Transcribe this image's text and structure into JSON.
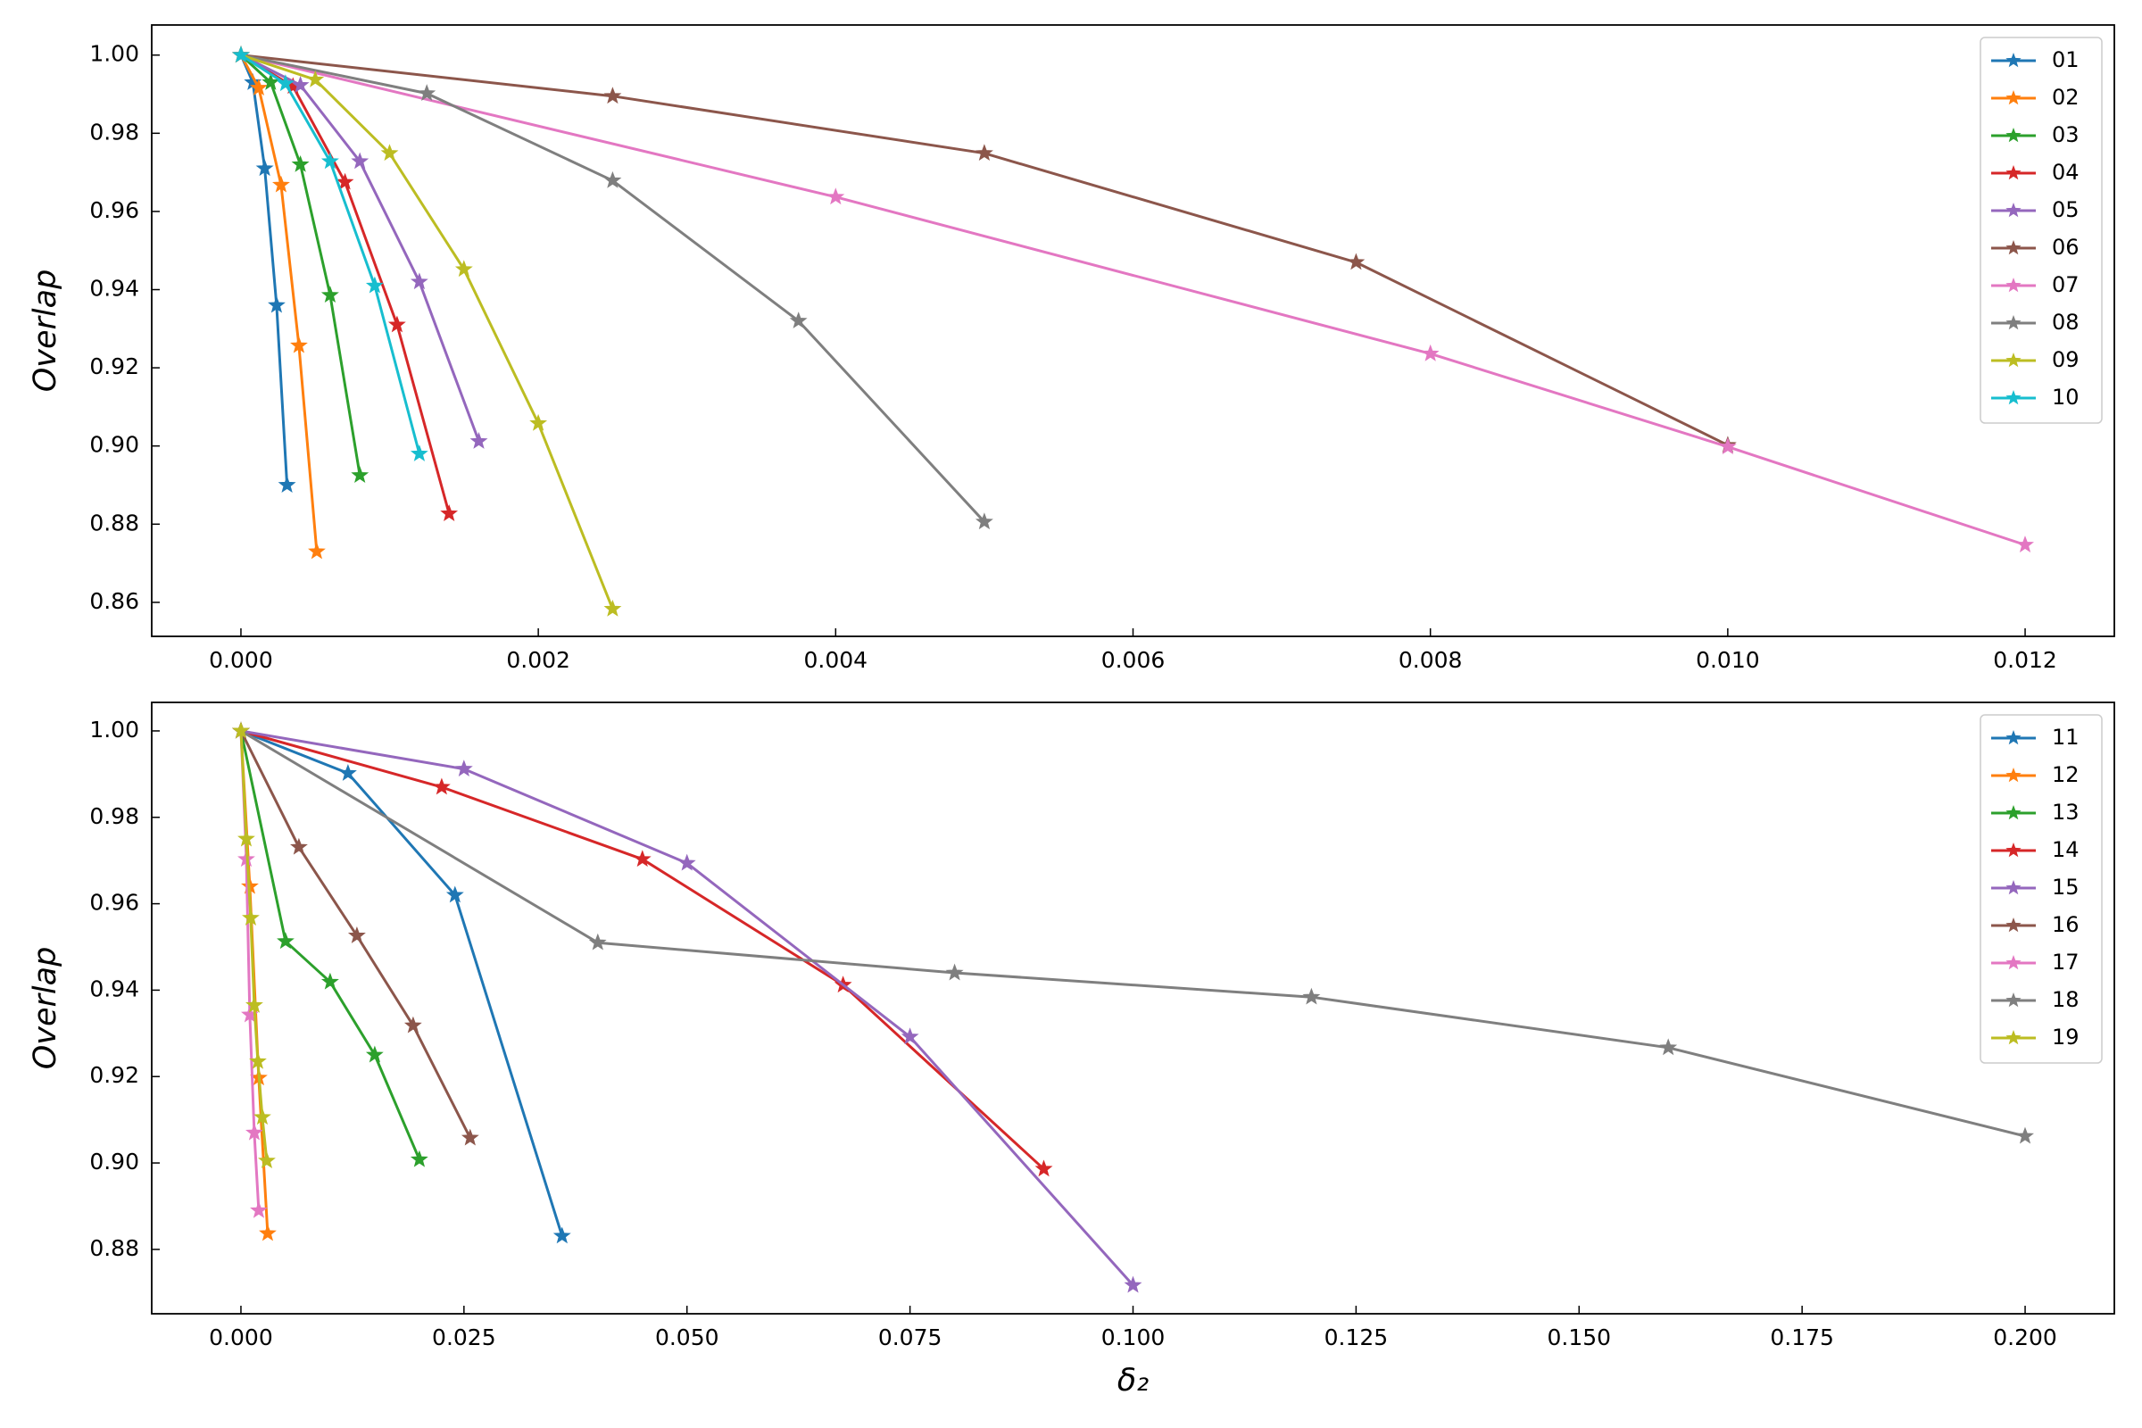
{
  "chart_data": [
    {
      "type": "line",
      "ylabel": "Overlap",
      "legend": "upper right",
      "xlim": [
        -0.0006,
        0.0126
      ],
      "ylim": [
        0.8513,
        1.0077
      ],
      "xticks": [
        {
          "value": 0,
          "label": "0.000"
        },
        {
          "value": 0.002,
          "label": "0.002"
        },
        {
          "value": 0.004,
          "label": "0.004"
        },
        {
          "value": 0.006,
          "label": "0.006"
        },
        {
          "value": 0.008,
          "label": "0.008"
        },
        {
          "value": 0.01,
          "label": "0.010"
        },
        {
          "value": 0.012,
          "label": "0.012"
        }
      ],
      "yticks": [
        {
          "value": 0.86,
          "label": "0.86"
        },
        {
          "value": 0.88,
          "label": "0.88"
        },
        {
          "value": 0.9,
          "label": "0.90"
        },
        {
          "value": 0.92,
          "label": "0.92"
        },
        {
          "value": 0.94,
          "label": "0.94"
        },
        {
          "value": 0.96,
          "label": "0.96"
        },
        {
          "value": 0.98,
          "label": "0.98"
        },
        {
          "value": 1.0,
          "label": "1.00"
        }
      ],
      "series": [
        {
          "name": "01",
          "color": "#1f77b4",
          "x": [
            0,
            8e-05,
            0.00016,
            0.00024,
            0.00031
          ],
          "values": [
            1.0,
            0.993,
            0.971,
            0.936,
            0.89
          ]
        },
        {
          "name": "02",
          "color": "#ff7f0e",
          "x": [
            0,
            0.00012,
            0.00027,
            0.00039,
            0.00051
          ],
          "values": [
            1.0,
            0.9916,
            0.9668,
            0.9257,
            0.873
          ]
        },
        {
          "name": "03",
          "color": "#2ca02c",
          "x": [
            0,
            0.0002,
            0.0004,
            0.0006,
            0.0008
          ],
          "values": [
            1.0,
            0.993,
            0.972,
            0.9386,
            0.8925
          ]
        },
        {
          "name": "04",
          "color": "#d62728",
          "x": [
            0,
            0.00035,
            0.0007,
            0.00105,
            0.0014
          ],
          "values": [
            1.0,
            0.992,
            0.9675,
            0.931,
            0.8827
          ]
        },
        {
          "name": "05",
          "color": "#9467bd",
          "x": [
            0,
            0.0004,
            0.0008,
            0.0012,
            0.0016
          ],
          "values": [
            1.0,
            0.9923,
            0.9728,
            0.942,
            0.9012
          ]
        },
        {
          "name": "06",
          "color": "#8c564b",
          "x": [
            0,
            0.0025,
            0.005,
            0.0075,
            0.01
          ],
          "values": [
            1.0,
            0.9895,
            0.9749,
            0.947,
            0.9002
          ]
        },
        {
          "name": "07",
          "color": "#e377c2",
          "x": [
            0,
            0.004,
            0.008,
            0.01,
            0.012
          ],
          "values": [
            1.0,
            0.9637,
            0.9236,
            0.8998,
            0.8747
          ]
        },
        {
          "name": "08",
          "color": "#7f7f7f",
          "x": [
            0,
            0.00125,
            0.0025,
            0.00375,
            0.005
          ],
          "values": [
            1.0,
            0.9902,
            0.9679,
            0.932,
            0.8806
          ]
        },
        {
          "name": "09",
          "color": "#bcbd22",
          "x": [
            0,
            0.0005,
            0.001,
            0.0015,
            0.002,
            0.0025
          ],
          "values": [
            1.0,
            0.9937,
            0.9749,
            0.9452,
            0.9058,
            0.8583
          ]
        },
        {
          "name": "10",
          "color": "#17becf",
          "x": [
            0,
            0.0003,
            0.0006,
            0.0009,
            0.0012
          ],
          "values": [
            1.0,
            0.9927,
            0.9728,
            0.941,
            0.898
          ]
        }
      ]
    },
    {
      "type": "line",
      "ylabel": "Overlap",
      "xlabel": "δ₂",
      "legend": "upper right",
      "xlim": [
        -0.01,
        0.21
      ],
      "ylim": [
        0.8651,
        1.0066
      ],
      "xticks": [
        {
          "value": 0,
          "label": "0.000"
        },
        {
          "value": 0.025,
          "label": "0.025"
        },
        {
          "value": 0.05,
          "label": "0.050"
        },
        {
          "value": 0.075,
          "label": "0.075"
        },
        {
          "value": 0.1,
          "label": "0.100"
        },
        {
          "value": 0.125,
          "label": "0.125"
        },
        {
          "value": 0.15,
          "label": "0.150"
        },
        {
          "value": 0.175,
          "label": "0.175"
        },
        {
          "value": 0.2,
          "label": "0.200"
        }
      ],
      "yticks": [
        {
          "value": 0.88,
          "label": "0.88"
        },
        {
          "value": 0.9,
          "label": "0.90"
        },
        {
          "value": 0.92,
          "label": "0.92"
        },
        {
          "value": 0.94,
          "label": "0.94"
        },
        {
          "value": 0.96,
          "label": "0.96"
        },
        {
          "value": 0.98,
          "label": "0.98"
        },
        {
          "value": 1.0,
          "label": "1.00"
        }
      ],
      "series": [
        {
          "name": "11",
          "color": "#1f77b4",
          "x": [
            0,
            0.012,
            0.024,
            0.036
          ],
          "values": [
            1.0,
            0.9902,
            0.962,
            0.8831
          ]
        },
        {
          "name": "12",
          "color": "#ff7f0e",
          "x": [
            0,
            0.001,
            0.002,
            0.003
          ],
          "values": [
            1.0,
            0.964,
            0.9197,
            0.8837
          ]
        },
        {
          "name": "13",
          "color": "#2ca02c",
          "x": [
            0,
            0.005,
            0.01,
            0.015,
            0.02
          ],
          "values": [
            1.0,
            0.9513,
            0.9419,
            0.925,
            0.9008
          ]
        },
        {
          "name": "14",
          "color": "#d62728",
          "x": [
            0,
            0.0225,
            0.045,
            0.0675,
            0.09
          ],
          "values": [
            1.0,
            0.987,
            0.9703,
            0.9412,
            0.8986
          ]
        },
        {
          "name": "15",
          "color": "#9467bd",
          "x": [
            0,
            0.025,
            0.05,
            0.075,
            0.1
          ],
          "values": [
            1.0,
            0.9912,
            0.9694,
            0.9292,
            0.8717
          ]
        },
        {
          "name": "16",
          "color": "#8c564b",
          "x": [
            0,
            0.0065,
            0.013,
            0.0193,
            0.0257
          ],
          "values": [
            1.0,
            0.9731,
            0.9526,
            0.9318,
            0.9058
          ]
        },
        {
          "name": "17",
          "color": "#e377c2",
          "x": [
            0,
            0.0006,
            0.001,
            0.0015,
            0.002
          ],
          "values": [
            1.0,
            0.9703,
            0.9343,
            0.907,
            0.889
          ]
        },
        {
          "name": "18",
          "color": "#7f7f7f",
          "x": [
            0,
            0.04,
            0.08,
            0.12,
            0.16,
            0.2
          ],
          "values": [
            1.0,
            0.951,
            0.944,
            0.9384,
            0.9267,
            0.9062
          ]
        },
        {
          "name": "19",
          "color": "#bcbd22",
          "x": [
            0,
            0.0006,
            0.0011,
            0.0015,
            0.0019,
            0.0024,
            0.0029
          ],
          "values": [
            1.0,
            0.975,
            0.9567,
            0.9365,
            0.9235,
            0.9106,
            0.9005
          ]
        }
      ]
    }
  ]
}
